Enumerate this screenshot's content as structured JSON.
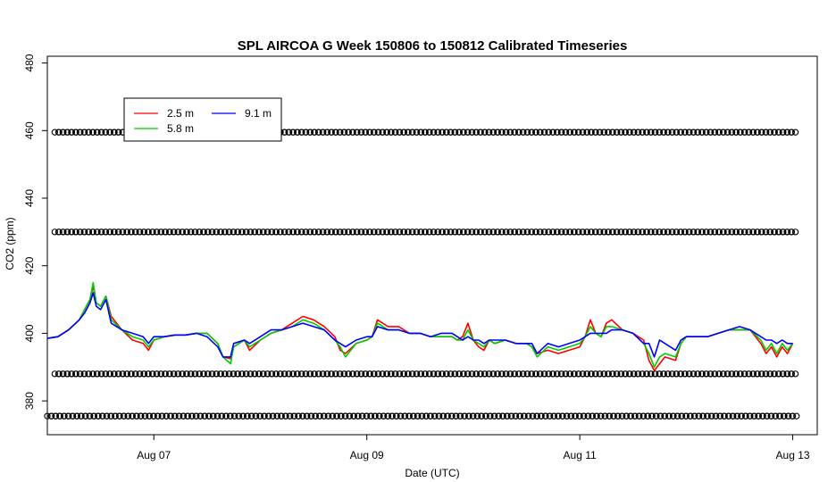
{
  "chart_data": {
    "type": "line",
    "title": "SPL AIRCOA G  Week 150806 to 150812  Calibrated Timeseries",
    "xlabel": "Date (UTC)",
    "ylabel": "CO2 (ppm)",
    "xlim": [
      0.0,
      7.23
    ],
    "ylim": [
      370,
      482
    ],
    "x_ticks": [
      {
        "x": 1.0,
        "label": "Aug 07"
      },
      {
        "x": 3.0,
        "label": "Aug 09"
      },
      {
        "x": 5.0,
        "label": "Aug 11"
      },
      {
        "x": 7.0,
        "label": "Aug 13"
      }
    ],
    "y_ticks": [
      380,
      400,
      420,
      440,
      460,
      480
    ],
    "legend": {
      "placement": "top-left",
      "entries": [
        {
          "name": "2.5 m",
          "color": "#ff0000"
        },
        {
          "name": "5.8 m",
          "color": "#00cd00"
        },
        {
          "name": "9.1 m",
          "color": "#0000ff"
        }
      ]
    },
    "series": [
      {
        "name": "2.5 m",
        "color": "#ff0000",
        "points": [
          [
            0.0,
            398.5
          ],
          [
            0.1,
            399
          ],
          [
            0.2,
            401
          ],
          [
            0.3,
            404
          ],
          [
            0.35,
            407
          ],
          [
            0.4,
            410
          ],
          [
            0.43,
            414
          ],
          [
            0.46,
            409
          ],
          [
            0.5,
            408
          ],
          [
            0.55,
            411
          ],
          [
            0.6,
            405
          ],
          [
            0.7,
            401
          ],
          [
            0.8,
            398
          ],
          [
            0.9,
            397
          ],
          [
            0.95,
            395
          ],
          [
            1.0,
            398
          ],
          [
            1.1,
            399
          ],
          [
            1.2,
            399.5
          ],
          [
            1.3,
            399.5
          ],
          [
            1.4,
            400
          ],
          [
            1.5,
            400
          ],
          [
            1.6,
            397
          ],
          [
            1.65,
            393
          ],
          [
            1.72,
            392.5
          ],
          [
            1.75,
            396
          ],
          [
            1.85,
            398
          ],
          [
            1.9,
            395
          ],
          [
            2.0,
            398
          ],
          [
            2.1,
            400
          ],
          [
            2.2,
            401
          ],
          [
            2.3,
            403
          ],
          [
            2.4,
            405
          ],
          [
            2.5,
            404
          ],
          [
            2.6,
            402
          ],
          [
            2.7,
            399
          ],
          [
            2.75,
            395
          ],
          [
            2.8,
            394
          ],
          [
            2.9,
            397
          ],
          [
            3.0,
            398
          ],
          [
            3.05,
            399
          ],
          [
            3.1,
            404
          ],
          [
            3.2,
            402
          ],
          [
            3.3,
            402
          ],
          [
            3.4,
            400
          ],
          [
            3.5,
            400
          ],
          [
            3.6,
            399
          ],
          [
            3.7,
            399
          ],
          [
            3.8,
            399
          ],
          [
            3.85,
            398
          ],
          [
            3.9,
            399
          ],
          [
            3.95,
            403
          ],
          [
            4.0,
            398
          ],
          [
            4.05,
            396
          ],
          [
            4.1,
            395
          ],
          [
            4.15,
            398
          ],
          [
            4.2,
            397
          ],
          [
            4.3,
            398
          ],
          [
            4.4,
            397
          ],
          [
            4.5,
            397
          ],
          [
            4.55,
            396
          ],
          [
            4.6,
            394
          ],
          [
            4.7,
            395
          ],
          [
            4.8,
            394
          ],
          [
            4.9,
            395
          ],
          [
            5.0,
            396
          ],
          [
            5.05,
            399
          ],
          [
            5.1,
            404
          ],
          [
            5.15,
            400
          ],
          [
            5.2,
            399
          ],
          [
            5.25,
            403
          ],
          [
            5.3,
            404
          ],
          [
            5.4,
            401
          ],
          [
            5.5,
            400
          ],
          [
            5.6,
            398
          ],
          [
            5.65,
            392
          ],
          [
            5.7,
            389
          ],
          [
            5.75,
            391
          ],
          [
            5.8,
            393
          ],
          [
            5.9,
            392
          ],
          [
            5.95,
            397
          ],
          [
            6.0,
            399
          ],
          [
            6.1,
            399
          ],
          [
            6.2,
            399
          ],
          [
            6.3,
            400
          ],
          [
            6.4,
            401
          ],
          [
            6.5,
            401
          ],
          [
            6.6,
            401
          ],
          [
            6.7,
            397
          ],
          [
            6.75,
            394
          ],
          [
            6.8,
            396
          ],
          [
            6.85,
            393
          ],
          [
            6.9,
            396
          ],
          [
            6.95,
            394
          ],
          [
            7.0,
            397
          ]
        ]
      },
      {
        "name": "5.8 m",
        "color": "#00cd00",
        "points": [
          [
            0.0,
            398.5
          ],
          [
            0.1,
            399
          ],
          [
            0.2,
            401
          ],
          [
            0.3,
            404
          ],
          [
            0.35,
            407
          ],
          [
            0.4,
            410
          ],
          [
            0.43,
            415
          ],
          [
            0.46,
            409
          ],
          [
            0.5,
            408
          ],
          [
            0.55,
            411
          ],
          [
            0.6,
            404
          ],
          [
            0.7,
            401
          ],
          [
            0.8,
            399
          ],
          [
            0.9,
            398
          ],
          [
            0.95,
            396
          ],
          [
            1.0,
            398
          ],
          [
            1.1,
            399
          ],
          [
            1.2,
            399.5
          ],
          [
            1.3,
            399.5
          ],
          [
            1.4,
            400
          ],
          [
            1.5,
            400
          ],
          [
            1.6,
            397
          ],
          [
            1.65,
            393
          ],
          [
            1.72,
            391
          ],
          [
            1.75,
            396
          ],
          [
            1.85,
            398
          ],
          [
            1.9,
            396
          ],
          [
            2.0,
            398
          ],
          [
            2.1,
            400
          ],
          [
            2.2,
            401
          ],
          [
            2.3,
            402
          ],
          [
            2.4,
            404
          ],
          [
            2.5,
            403
          ],
          [
            2.6,
            401
          ],
          [
            2.7,
            398
          ],
          [
            2.75,
            396
          ],
          [
            2.8,
            393
          ],
          [
            2.9,
            397
          ],
          [
            3.0,
            398
          ],
          [
            3.05,
            399
          ],
          [
            3.1,
            403
          ],
          [
            3.2,
            401
          ],
          [
            3.3,
            401
          ],
          [
            3.4,
            400
          ],
          [
            3.5,
            400
          ],
          [
            3.6,
            399
          ],
          [
            3.7,
            399
          ],
          [
            3.8,
            399
          ],
          [
            3.85,
            398
          ],
          [
            3.9,
            398
          ],
          [
            3.95,
            401
          ],
          [
            4.0,
            398
          ],
          [
            4.05,
            397
          ],
          [
            4.1,
            396
          ],
          [
            4.15,
            398
          ],
          [
            4.2,
            397
          ],
          [
            4.3,
            398
          ],
          [
            4.4,
            397
          ],
          [
            4.5,
            397
          ],
          [
            4.55,
            396
          ],
          [
            4.6,
            393
          ],
          [
            4.7,
            396
          ],
          [
            4.8,
            395
          ],
          [
            4.9,
            396
          ],
          [
            5.0,
            397
          ],
          [
            5.05,
            399
          ],
          [
            5.1,
            402
          ],
          [
            5.15,
            400
          ],
          [
            5.2,
            399
          ],
          [
            5.25,
            402
          ],
          [
            5.3,
            402
          ],
          [
            5.4,
            401
          ],
          [
            5.5,
            400
          ],
          [
            5.6,
            397
          ],
          [
            5.65,
            394
          ],
          [
            5.7,
            390
          ],
          [
            5.75,
            393
          ],
          [
            5.8,
            394
          ],
          [
            5.9,
            393
          ],
          [
            5.95,
            397
          ],
          [
            6.0,
            399
          ],
          [
            6.1,
            399
          ],
          [
            6.2,
            399
          ],
          [
            6.3,
            400
          ],
          [
            6.4,
            401
          ],
          [
            6.5,
            401
          ],
          [
            6.6,
            401
          ],
          [
            6.7,
            398
          ],
          [
            6.75,
            395
          ],
          [
            6.8,
            397
          ],
          [
            6.85,
            394
          ],
          [
            6.9,
            397
          ],
          [
            6.95,
            395
          ],
          [
            7.0,
            397
          ]
        ]
      },
      {
        "name": "9.1 m",
        "color": "#0000ff",
        "points": [
          [
            0.0,
            398.5
          ],
          [
            0.1,
            399
          ],
          [
            0.2,
            401
          ],
          [
            0.3,
            404
          ],
          [
            0.35,
            406
          ],
          [
            0.4,
            409
          ],
          [
            0.43,
            412
          ],
          [
            0.46,
            408
          ],
          [
            0.5,
            407
          ],
          [
            0.55,
            410
          ],
          [
            0.6,
            403
          ],
          [
            0.7,
            401
          ],
          [
            0.8,
            400
          ],
          [
            0.9,
            399
          ],
          [
            0.95,
            397
          ],
          [
            1.0,
            399
          ],
          [
            1.1,
            399
          ],
          [
            1.2,
            399.5
          ],
          [
            1.3,
            399.5
          ],
          [
            1.4,
            400
          ],
          [
            1.5,
            399
          ],
          [
            1.6,
            396
          ],
          [
            1.65,
            393
          ],
          [
            1.72,
            393
          ],
          [
            1.75,
            397
          ],
          [
            1.85,
            398
          ],
          [
            1.9,
            397
          ],
          [
            2.0,
            399
          ],
          [
            2.1,
            401
          ],
          [
            2.2,
            401
          ],
          [
            2.3,
            402
          ],
          [
            2.4,
            403
          ],
          [
            2.5,
            402
          ],
          [
            2.6,
            401
          ],
          [
            2.7,
            398
          ],
          [
            2.75,
            397
          ],
          [
            2.8,
            396
          ],
          [
            2.9,
            398
          ],
          [
            3.0,
            399
          ],
          [
            3.05,
            399
          ],
          [
            3.1,
            402
          ],
          [
            3.2,
            401
          ],
          [
            3.3,
            401
          ],
          [
            3.4,
            400
          ],
          [
            3.5,
            400
          ],
          [
            3.6,
            399
          ],
          [
            3.7,
            400
          ],
          [
            3.8,
            400
          ],
          [
            3.85,
            399
          ],
          [
            3.9,
            398
          ],
          [
            3.95,
            399
          ],
          [
            4.0,
            398
          ],
          [
            4.05,
            398
          ],
          [
            4.1,
            397
          ],
          [
            4.15,
            398
          ],
          [
            4.2,
            398
          ],
          [
            4.3,
            398
          ],
          [
            4.4,
            397
          ],
          [
            4.5,
            397
          ],
          [
            4.55,
            397
          ],
          [
            4.6,
            394
          ],
          [
            4.7,
            397
          ],
          [
            4.8,
            396
          ],
          [
            4.9,
            397
          ],
          [
            5.0,
            398
          ],
          [
            5.05,
            399
          ],
          [
            5.1,
            400
          ],
          [
            5.15,
            400
          ],
          [
            5.2,
            400
          ],
          [
            5.25,
            400
          ],
          [
            5.3,
            401
          ],
          [
            5.4,
            401
          ],
          [
            5.5,
            400
          ],
          [
            5.6,
            397
          ],
          [
            5.65,
            397
          ],
          [
            5.7,
            393
          ],
          [
            5.75,
            398
          ],
          [
            5.8,
            397
          ],
          [
            5.9,
            395
          ],
          [
            5.95,
            398
          ],
          [
            6.0,
            399
          ],
          [
            6.1,
            399
          ],
          [
            6.2,
            399
          ],
          [
            6.3,
            400
          ],
          [
            6.4,
            401
          ],
          [
            6.5,
            402
          ],
          [
            6.6,
            401
          ],
          [
            6.7,
            399
          ],
          [
            6.75,
            398
          ],
          [
            6.8,
            398
          ],
          [
            6.85,
            397
          ],
          [
            6.9,
            398
          ],
          [
            6.95,
            397
          ],
          [
            7.0,
            397
          ]
        ]
      }
    ],
    "marker_rows": [
      {
        "y": 459.5,
        "x_start": 0.07,
        "x_end": 7.0
      },
      {
        "y": 430,
        "x_start": 0.07,
        "x_end": 7.0
      },
      {
        "y": 388,
        "x_start": 0.07,
        "x_end": 7.0
      },
      {
        "y": 375.5,
        "x_start": 0.0,
        "x_end": 7.0
      }
    ]
  }
}
